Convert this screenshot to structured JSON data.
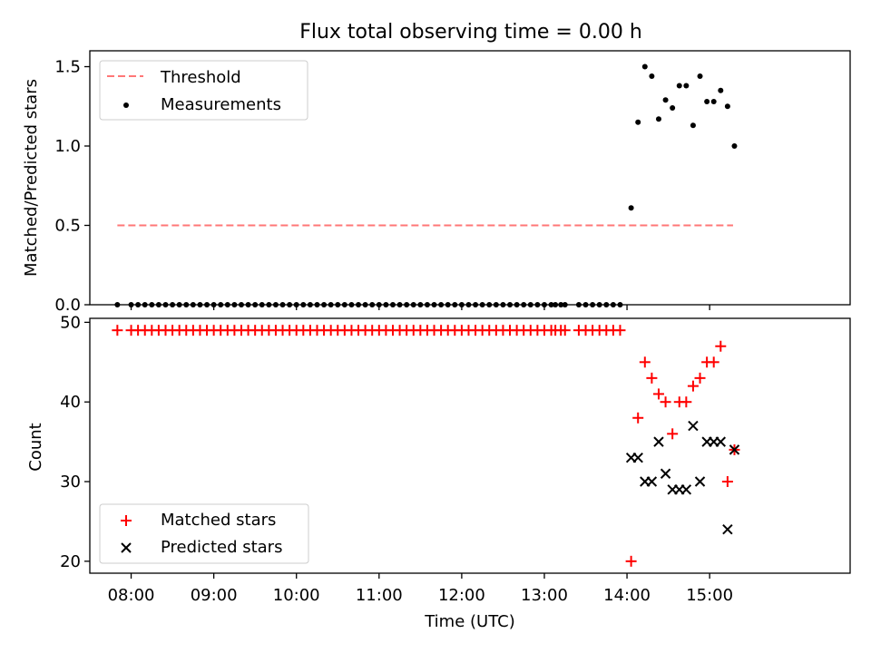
{
  "chart_data": [
    {
      "type": "scatter",
      "title": "Flux total observing time = 0.00 h",
      "xlabel": "",
      "ylabel": "Matched/Predicted stars",
      "ylim": [
        0,
        1.6
      ],
      "xlim": [
        "07:30",
        "16:42"
      ],
      "yticks": [
        "0.0",
        "0.5",
        "1.0",
        "1.5"
      ],
      "grid": false,
      "legend_position": "upper left",
      "legend": [
        "Threshold",
        "Measurements"
      ],
      "series": [
        {
          "name": "Threshold",
          "style": "dashed-line",
          "color": "#ff7777",
          "x": [
            "07:50",
            "15:17"
          ],
          "y": [
            0.5,
            0.5
          ]
        },
        {
          "name": "Measurements",
          "style": "dot",
          "color": "#000000",
          "x": [
            "07:50",
            "08:00",
            "08:05",
            "08:10",
            "08:15",
            "08:20",
            "08:25",
            "08:30",
            "08:35",
            "08:40",
            "08:45",
            "08:50",
            "08:55",
            "09:00",
            "09:05",
            "09:10",
            "09:15",
            "09:20",
            "09:25",
            "09:30",
            "09:35",
            "09:40",
            "09:45",
            "09:50",
            "09:55",
            "10:00",
            "10:05",
            "10:10",
            "10:15",
            "10:20",
            "10:25",
            "10:30",
            "10:35",
            "10:40",
            "10:45",
            "10:50",
            "10:55",
            "11:00",
            "11:05",
            "11:10",
            "11:15",
            "11:20",
            "11:25",
            "11:30",
            "11:35",
            "11:40",
            "11:45",
            "11:50",
            "11:55",
            "12:00",
            "12:05",
            "12:10",
            "12:15",
            "12:20",
            "12:25",
            "12:30",
            "12:35",
            "12:40",
            "12:45",
            "12:50",
            "12:55",
            "13:00",
            "13:05",
            "13:08",
            "13:12",
            "13:15",
            "13:25",
            "13:30",
            "13:35",
            "13:40",
            "13:45",
            "13:50",
            "13:55",
            "14:03",
            "14:08",
            "14:13",
            "14:18",
            "14:23",
            "14:28",
            "14:33",
            "14:38",
            "14:43",
            "14:48",
            "14:53",
            "14:58",
            "15:03",
            "15:08",
            "15:13",
            "15:18"
          ],
          "y": [
            0,
            0,
            0,
            0,
            0,
            0,
            0,
            0,
            0,
            0,
            0,
            0,
            0,
            0,
            0,
            0,
            0,
            0,
            0,
            0,
            0,
            0,
            0,
            0,
            0,
            0,
            0,
            0,
            0,
            0,
            0,
            0,
            0,
            0,
            0,
            0,
            0,
            0,
            0,
            0,
            0,
            0,
            0,
            0,
            0,
            0,
            0,
            0,
            0,
            0,
            0,
            0,
            0,
            0,
            0,
            0,
            0,
            0,
            0,
            0,
            0,
            0,
            0,
            0,
            0,
            0,
            0,
            0,
            0,
            0,
            0,
            0,
            0,
            0.61,
            1.15,
            1.5,
            1.44,
            1.17,
            1.29,
            1.24,
            1.38,
            1.38,
            1.13,
            1.44,
            1.28,
            1.28,
            1.35,
            1.25,
            1.0
          ]
        }
      ]
    },
    {
      "type": "scatter",
      "title": "",
      "xlabel": "Time (UTC)",
      "ylabel": "Count",
      "ylim": [
        18.5,
        50.5
      ],
      "xlim": [
        "07:30",
        "16:42"
      ],
      "yticks": [
        "20",
        "30",
        "40",
        "50"
      ],
      "xticks": [
        "08:00",
        "09:00",
        "10:00",
        "11:00",
        "12:00",
        "13:00",
        "14:00",
        "15:00"
      ],
      "grid": false,
      "legend_position": "lower left",
      "legend": [
        "Matched stars",
        "Predicted stars"
      ],
      "series": [
        {
          "name": "Matched stars",
          "style": "plus",
          "color": "#ff0000",
          "x": [
            "07:50",
            "08:00",
            "08:05",
            "08:10",
            "08:15",
            "08:20",
            "08:25",
            "08:30",
            "08:35",
            "08:40",
            "08:45",
            "08:50",
            "08:55",
            "09:00",
            "09:05",
            "09:10",
            "09:15",
            "09:20",
            "09:25",
            "09:30",
            "09:35",
            "09:40",
            "09:45",
            "09:50",
            "09:55",
            "10:00",
            "10:05",
            "10:10",
            "10:15",
            "10:20",
            "10:25",
            "10:30",
            "10:35",
            "10:40",
            "10:45",
            "10:50",
            "10:55",
            "11:00",
            "11:05",
            "11:10",
            "11:15",
            "11:20",
            "11:25",
            "11:30",
            "11:35",
            "11:40",
            "11:45",
            "11:50",
            "11:55",
            "12:00",
            "12:05",
            "12:10",
            "12:15",
            "12:20",
            "12:25",
            "12:30",
            "12:35",
            "12:40",
            "12:45",
            "12:50",
            "12:55",
            "13:00",
            "13:05",
            "13:08",
            "13:12",
            "13:15",
            "13:25",
            "13:30",
            "13:35",
            "13:40",
            "13:45",
            "13:50",
            "13:55",
            "14:03",
            "14:08",
            "14:13",
            "14:18",
            "14:23",
            "14:28",
            "14:33",
            "14:38",
            "14:43",
            "14:48",
            "14:53",
            "14:58",
            "15:03",
            "15:08",
            "15:13",
            "15:18"
          ],
          "y": [
            49,
            49,
            49,
            49,
            49,
            49,
            49,
            49,
            49,
            49,
            49,
            49,
            49,
            49,
            49,
            49,
            49,
            49,
            49,
            49,
            49,
            49,
            49,
            49,
            49,
            49,
            49,
            49,
            49,
            49,
            49,
            49,
            49,
            49,
            49,
            49,
            49,
            49,
            49,
            49,
            49,
            49,
            49,
            49,
            49,
            49,
            49,
            49,
            49,
            49,
            49,
            49,
            49,
            49,
            49,
            49,
            49,
            49,
            49,
            49,
            49,
            49,
            49,
            49,
            49,
            49,
            49,
            49,
            49,
            49,
            49,
            49,
            49,
            20,
            38,
            45,
            43,
            41,
            40,
            36,
            40,
            40,
            42,
            43,
            45,
            45,
            47,
            30,
            34
          ]
        },
        {
          "name": "Predicted stars",
          "style": "x",
          "color": "#000000",
          "x": [
            "14:03",
            "14:08",
            "14:13",
            "14:18",
            "14:23",
            "14:28",
            "14:33",
            "14:38",
            "14:43",
            "14:48",
            "14:53",
            "14:58",
            "15:03",
            "15:08",
            "15:13",
            "15:18"
          ],
          "y": [
            33,
            33,
            30,
            30,
            35,
            31,
            29,
            29,
            29,
            37,
            30,
            35,
            35,
            35,
            24,
            34
          ]
        }
      ]
    }
  ]
}
